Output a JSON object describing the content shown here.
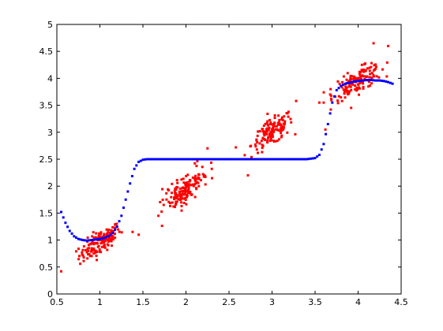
{
  "colors": {
    "background": "#ffffff",
    "axes": "#000000",
    "noisy_series": "#ff0000",
    "fitted_series": "#0000ff"
  },
  "chart_data": {
    "type": "scatter",
    "title": "",
    "xlabel": "",
    "ylabel": "",
    "xlim": [
      0.5,
      4.5
    ],
    "ylim": [
      0,
      5
    ],
    "grid": false,
    "legend": "none",
    "x_ticks": [
      "0.5",
      "1",
      "1.5",
      "2",
      "2.5",
      "3",
      "3.5",
      "4",
      "4.5"
    ],
    "y_ticks": [
      "0",
      "0.5",
      "1",
      "1.5",
      "2",
      "2.5",
      "3",
      "3.5",
      "4",
      "4.5",
      "5"
    ],
    "series": [
      {
        "color": "#ff0000",
        "marker": "dot",
        "clusters": [
          {
            "center": [
              1.0,
              0.95
            ],
            "spread": [
              0.12,
              0.18
            ],
            "count": 140,
            "slope": 1.0,
            "x_range": [
              0.52,
              1.3
            ]
          },
          {
            "center": [
              2.0,
              1.95
            ],
            "spread": [
              0.13,
              0.22
            ],
            "count": 150,
            "slope": 1.1,
            "x_range": [
              1.6,
              2.6
            ]
          },
          {
            "center": [
              3.0,
              3.0
            ],
            "spread": [
              0.12,
              0.2
            ],
            "count": 140,
            "slope": 1.0,
            "x_range": [
              2.4,
              3.5
            ]
          },
          {
            "center": [
              4.0,
              3.95
            ],
            "spread": [
              0.14,
              0.18
            ],
            "count": 150,
            "slope": 0.8,
            "x_range": [
              3.5,
              4.4
            ]
          }
        ],
        "points": [
          [
            0.55,
            0.42
          ],
          [
            1.38,
            1.15
          ],
          [
            1.45,
            1.1
          ],
          [
            1.68,
            1.45
          ],
          [
            2.25,
            2.7
          ],
          [
            2.45,
            2.5
          ],
          [
            2.58,
            2.72
          ],
          [
            2.72,
            2.2
          ],
          [
            3.28,
            3.58
          ],
          [
            3.55,
            3.55
          ],
          [
            3.6,
            3.55
          ],
          [
            3.62,
            3.05
          ],
          [
            3.68,
            3.8
          ],
          [
            4.18,
            4.65
          ],
          [
            4.35,
            4.6
          ]
        ]
      },
      {
        "color": "#0000ff",
        "marker": "dot",
        "x": [
          0.55,
          0.6,
          0.65,
          0.7,
          0.75,
          0.8,
          0.85,
          0.9,
          0.95,
          1.0,
          1.05,
          1.1,
          1.15,
          1.2,
          1.25,
          1.3,
          1.35,
          1.4,
          1.45,
          1.5,
          1.55,
          1.6,
          1.7,
          1.8,
          1.9,
          2.0,
          2.1,
          2.2,
          2.3,
          2.4,
          2.5,
          2.6,
          2.7,
          2.8,
          2.9,
          3.0,
          3.1,
          3.2,
          3.3,
          3.4,
          3.5,
          3.55,
          3.6,
          3.65,
          3.7,
          3.75,
          3.8,
          3.85,
          3.9,
          3.95,
          4.0,
          4.05,
          4.1,
          4.15,
          4.2,
          4.25,
          4.3,
          4.35,
          4.4
        ],
        "y": [
          1.52,
          1.32,
          1.17,
          1.07,
          1.02,
          1.0,
          0.99,
          1.0,
          1.01,
          1.02,
          1.04,
          1.07,
          1.13,
          1.25,
          1.45,
          1.75,
          2.05,
          2.32,
          2.45,
          2.49,
          2.5,
          2.5,
          2.5,
          2.5,
          2.5,
          2.5,
          2.5,
          2.5,
          2.5,
          2.5,
          2.5,
          2.5,
          2.5,
          2.5,
          2.5,
          2.5,
          2.5,
          2.5,
          2.5,
          2.5,
          2.52,
          2.58,
          2.78,
          3.15,
          3.55,
          3.78,
          3.86,
          3.9,
          3.92,
          3.94,
          3.95,
          3.96,
          3.97,
          3.97,
          3.96,
          3.96,
          3.95,
          3.93,
          3.9
        ]
      }
    ]
  }
}
